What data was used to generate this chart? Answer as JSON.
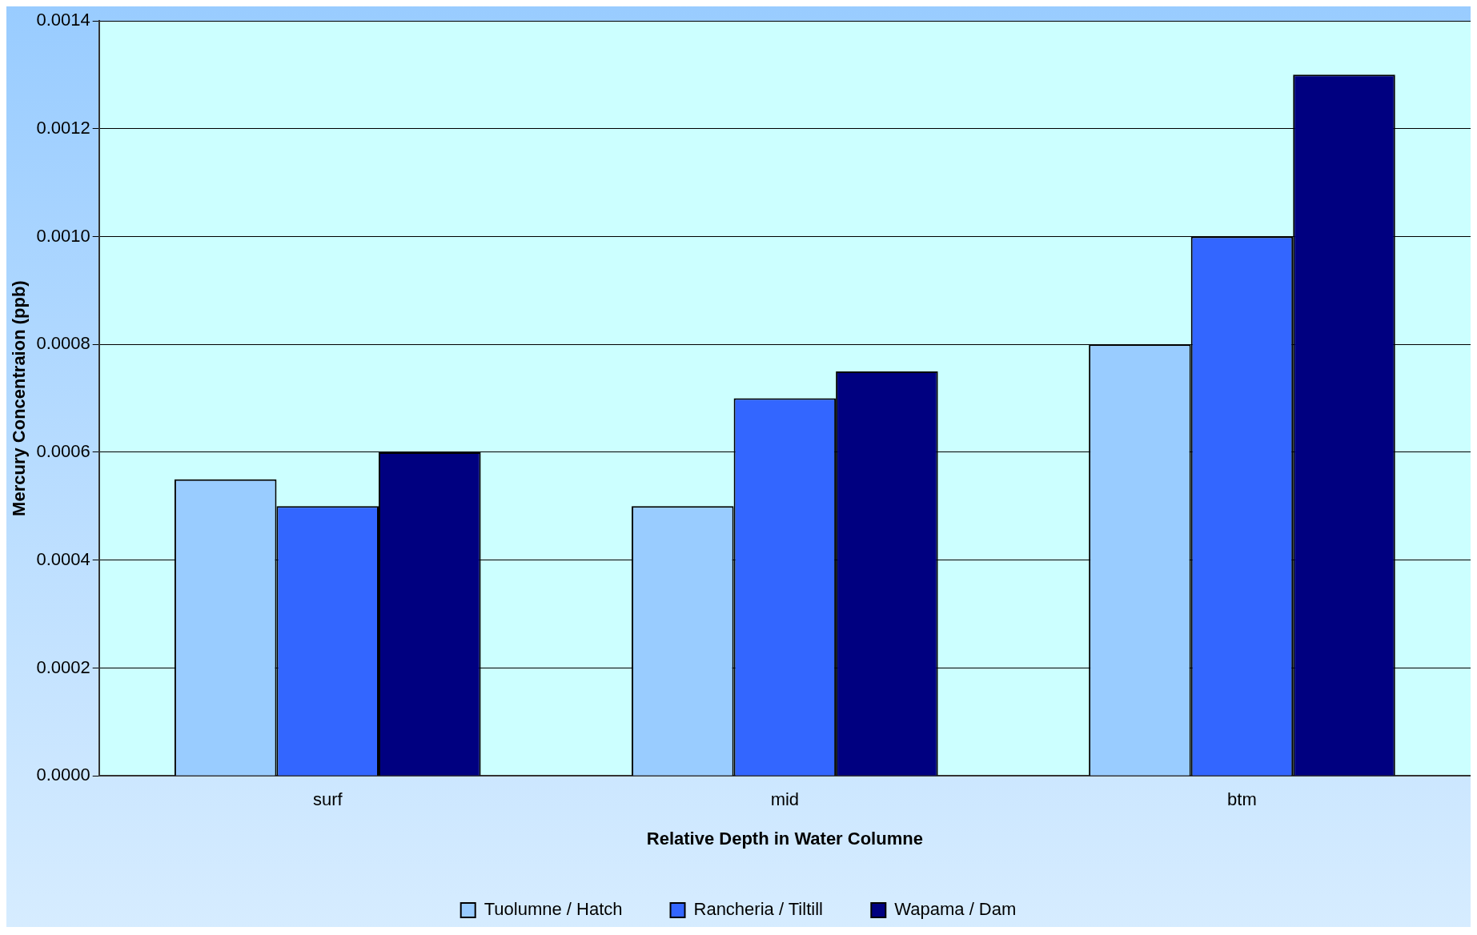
{
  "chart_data": {
    "type": "bar",
    "xlabel": "Relative Depth in Water Columne",
    "ylabel": "Mercury Concentraion (ppb)",
    "categories": [
      "surf",
      "mid",
      "btm"
    ],
    "series": [
      {
        "name": "Tuolumne / Hatch",
        "color": "#99ccff",
        "values": [
          0.00055,
          0.0005,
          0.0008
        ]
      },
      {
        "name": "Rancheria / Tiltill",
        "color": "#3366ff",
        "values": [
          0.0005,
          0.0007,
          0.001
        ]
      },
      {
        "name": "Wapama / Dam",
        "color": "#000080",
        "values": [
          0.0006,
          0.00075,
          0.0013
        ]
      }
    ],
    "ylim": [
      0,
      0.0014
    ],
    "yticks": [
      {
        "value": 0,
        "label": "0.0000"
      },
      {
        "value": 0.0002,
        "label": "0.0002"
      },
      {
        "value": 0.0004,
        "label": "0.0004"
      },
      {
        "value": 0.0006,
        "label": "0.0006"
      },
      {
        "value": 0.0008,
        "label": "0.0008"
      },
      {
        "value": 0.001,
        "label": "0.0010"
      },
      {
        "value": 0.0012,
        "label": "0.0012"
      },
      {
        "value": 0.0014,
        "label": "0.0014"
      }
    ],
    "grid": "y",
    "legend": "bottom"
  }
}
